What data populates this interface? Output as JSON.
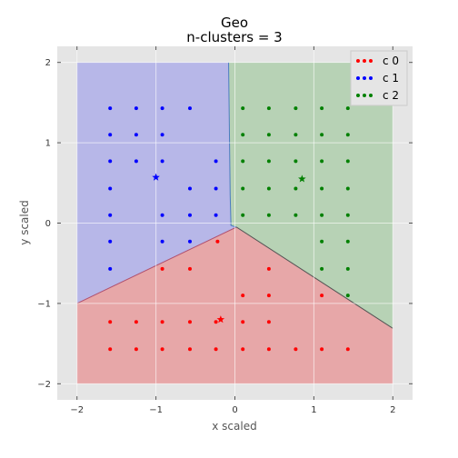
{
  "chart_data": {
    "type": "scatter",
    "title": "Geo",
    "subtitle": "n-clusters = 3",
    "xlabel": "x scaled",
    "ylabel": "y scaled",
    "xlim": [
      -2.25,
      2.25
    ],
    "ylim": [
      -2.2,
      2.2
    ],
    "xticks": [
      -2,
      -1,
      0,
      1,
      2
    ],
    "yticks": [
      -2,
      -1,
      0,
      1,
      2
    ],
    "xtick_labels": [
      "−2",
      "−1",
      "0",
      "1",
      "2"
    ],
    "ytick_labels": [
      "−2",
      "−1",
      "0",
      "1",
      "2"
    ],
    "grid": true,
    "legend_position": "top-right",
    "regions": [
      {
        "cluster": 0,
        "color": "#e7a7a8",
        "polygon": [
          [
            -2,
            -1
          ],
          [
            0.02,
            -0.05
          ],
          [
            2,
            -1.31
          ],
          [
            2,
            -2
          ],
          [
            -2,
            -2
          ]
        ]
      },
      {
        "cluster": 1,
        "color": "#b7b7e8",
        "polygon": [
          [
            -2,
            2
          ],
          [
            -0.08,
            2
          ],
          [
            -0.06,
            0.35
          ],
          [
            -0.05,
            -0.03
          ],
          [
            0.02,
            -0.05
          ],
          [
            -2,
            -1
          ]
        ]
      },
      {
        "cluster": 2,
        "color": "#b7d2b5",
        "polygon": [
          [
            -0.08,
            2
          ],
          [
            2,
            2
          ],
          [
            2,
            -1.31
          ],
          [
            0.02,
            -0.05
          ],
          [
            -0.05,
            -0.03
          ],
          [
            -0.06,
            0.35
          ]
        ]
      }
    ],
    "series": [
      {
        "name": "c 0",
        "color": "#ff0000",
        "points": [
          [
            -0.22,
            -0.23
          ],
          [
            -0.92,
            -0.57
          ],
          [
            -0.57,
            -0.57
          ],
          [
            0.43,
            -0.57
          ],
          [
            0.1,
            -0.9
          ],
          [
            0.43,
            -0.9
          ],
          [
            1.1,
            -0.9
          ],
          [
            -1.58,
            -1.23
          ],
          [
            -1.25,
            -1.23
          ],
          [
            -0.92,
            -1.23
          ],
          [
            -0.57,
            -1.23
          ],
          [
            -0.24,
            -1.23
          ],
          [
            0.1,
            -1.23
          ],
          [
            0.43,
            -1.23
          ],
          [
            -1.58,
            -1.57
          ],
          [
            -1.25,
            -1.57
          ],
          [
            -0.92,
            -1.57
          ],
          [
            -0.57,
            -1.57
          ],
          [
            -0.24,
            -1.57
          ],
          [
            0.1,
            -1.57
          ],
          [
            0.43,
            -1.57
          ],
          [
            0.77,
            -1.57
          ],
          [
            1.1,
            -1.57
          ],
          [
            1.43,
            -1.57
          ]
        ],
        "centroid": [
          -0.18,
          -1.2
        ]
      },
      {
        "name": "c 1",
        "color": "#0000ff",
        "points": [
          [
            -1.58,
            1.43
          ],
          [
            -1.25,
            1.43
          ],
          [
            -0.92,
            1.43
          ],
          [
            -0.57,
            1.43
          ],
          [
            -1.58,
            1.1
          ],
          [
            -1.25,
            1.1
          ],
          [
            -0.92,
            1.1
          ],
          [
            -1.58,
            0.77
          ],
          [
            -1.25,
            0.77
          ],
          [
            -0.92,
            0.77
          ],
          [
            -0.24,
            0.77
          ],
          [
            -1.58,
            0.43
          ],
          [
            -0.57,
            0.43
          ],
          [
            -0.24,
            0.43
          ],
          [
            -1.58,
            0.1
          ],
          [
            -0.92,
            0.1
          ],
          [
            -0.57,
            0.1
          ],
          [
            -0.24,
            0.1
          ],
          [
            -1.58,
            -0.23
          ],
          [
            -0.92,
            -0.23
          ],
          [
            -0.57,
            -0.23
          ],
          [
            -1.58,
            -0.57
          ]
        ],
        "centroid": [
          -1.0,
          0.57
        ]
      },
      {
        "name": "c 2",
        "color": "#008000",
        "points": [
          [
            0.1,
            1.43
          ],
          [
            0.43,
            1.43
          ],
          [
            0.77,
            1.43
          ],
          [
            1.1,
            1.43
          ],
          [
            1.43,
            1.43
          ],
          [
            0.1,
            1.1
          ],
          [
            0.43,
            1.1
          ],
          [
            0.77,
            1.1
          ],
          [
            1.1,
            1.1
          ],
          [
            1.43,
            1.1
          ],
          [
            0.1,
            0.77
          ],
          [
            0.43,
            0.77
          ],
          [
            0.77,
            0.77
          ],
          [
            1.1,
            0.77
          ],
          [
            1.43,
            0.77
          ],
          [
            0.1,
            0.43
          ],
          [
            0.43,
            0.43
          ],
          [
            0.77,
            0.43
          ],
          [
            1.1,
            0.43
          ],
          [
            1.43,
            0.43
          ],
          [
            0.1,
            0.1
          ],
          [
            0.43,
            0.1
          ],
          [
            0.77,
            0.1
          ],
          [
            1.1,
            0.1
          ],
          [
            1.43,
            0.1
          ],
          [
            1.1,
            -0.23
          ],
          [
            1.43,
            -0.23
          ],
          [
            1.1,
            -0.57
          ],
          [
            1.43,
            -0.57
          ],
          [
            1.43,
            -0.9
          ]
        ],
        "centroid": [
          0.85,
          0.55
        ]
      }
    ]
  }
}
